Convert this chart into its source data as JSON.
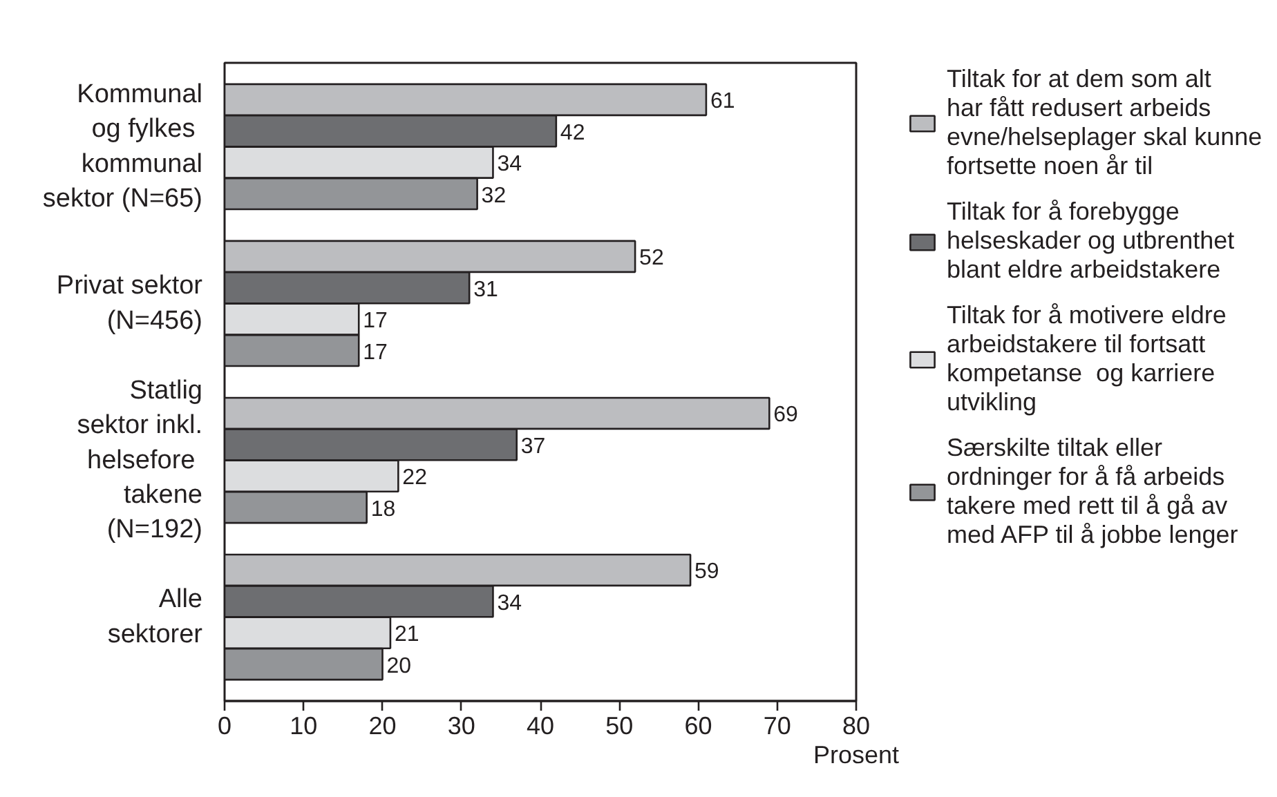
{
  "chart_data": {
    "type": "bar",
    "orientation": "horizontal",
    "categories": [
      "Kommunal\nog fylkes \nkommunal\nsektor (N=65)",
      "Privat sektor\n(N=456)",
      "Statlig\nsektor inkl.\nhelsefore \ntakene\n(N=192)",
      "Alle\nsektorer"
    ],
    "series": [
      {
        "name": "Tiltak for at dem som alt\nhar fått redusert arbeids\nevne/helseplager skal kunne\nfortsette noen år til",
        "color": "#bcbdc0",
        "values": [
          61,
          52,
          69,
          59
        ]
      },
      {
        "name": "Tiltak for å forebygge\nhelseskader og utbrenthet\nblant eldre arbeidstakere",
        "color": "#6d6e71",
        "values": [
          42,
          31,
          37,
          34
        ]
      },
      {
        "name": "Tiltak for å motivere eldre\narbeidstakere til fortsatt\nkompetanse  og karriere\nutvikling",
        "color": "#dcdddf",
        "values": [
          34,
          17,
          22,
          21
        ]
      },
      {
        "name": "Særskilte tiltak eller\nordninger for å få arbeids\ntakere med rett til å gå av\nmed AFP til å jobbe lenger",
        "color": "#939598",
        "values": [
          32,
          17,
          18,
          20
        ]
      }
    ],
    "xlim": [
      0,
      80
    ],
    "xticks": [
      0,
      10,
      20,
      30,
      40,
      50,
      60,
      70,
      80
    ],
    "xlabel": "Prosent",
    "data_labels": true,
    "legend": "right"
  }
}
